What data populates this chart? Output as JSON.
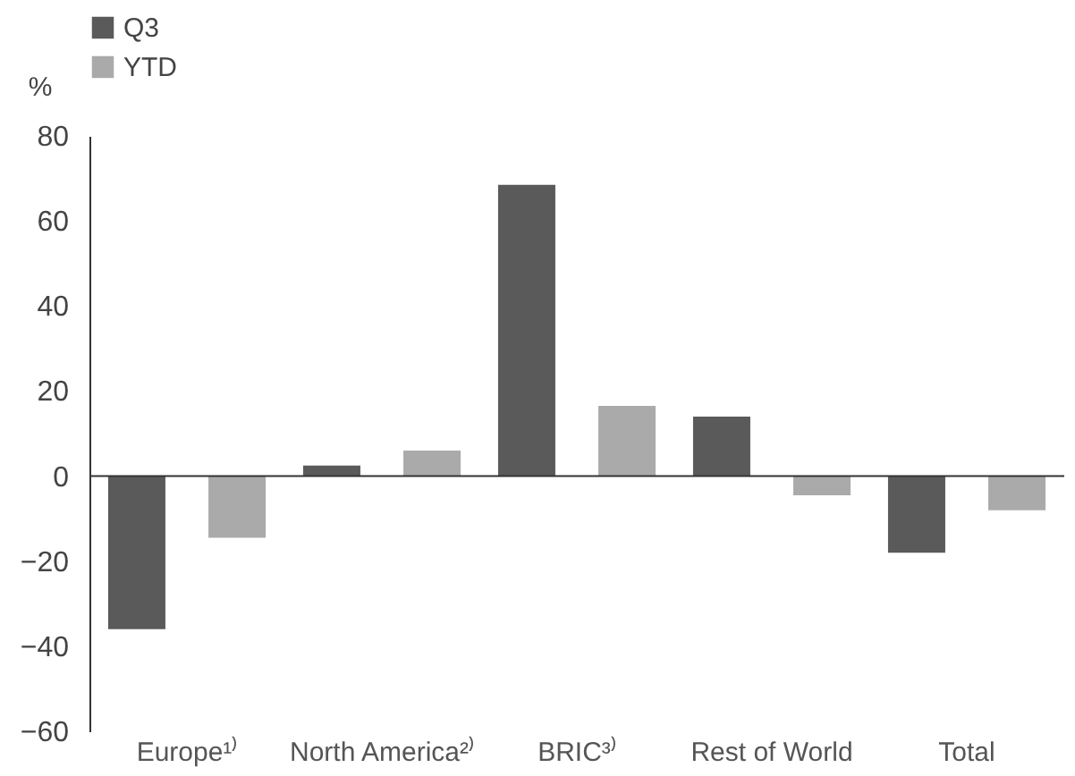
{
  "chart_data": {
    "type": "bar",
    "ylabel": "%",
    "categories": [
      "Europe¹⁾",
      "North America²⁾",
      "BRIC³⁾",
      "Rest of World",
      "Total"
    ],
    "series": [
      {
        "name": "Q3",
        "color": "#5a5a5a",
        "values": [
          -36,
          2.5,
          68.5,
          14,
          -18
        ]
      },
      {
        "name": "YTD",
        "color": "#aaaaaa",
        "values": [
          -14.5,
          6,
          16.5,
          -4.5,
          -8
        ]
      }
    ],
    "ylim": [
      -60,
      80
    ],
    "yticks": [
      -60,
      -40,
      -20,
      0,
      20,
      40,
      60,
      80
    ],
    "ref_lines": [
      {
        "axis": "y",
        "value": 0
      }
    ],
    "grid": false,
    "legend": "top left"
  }
}
